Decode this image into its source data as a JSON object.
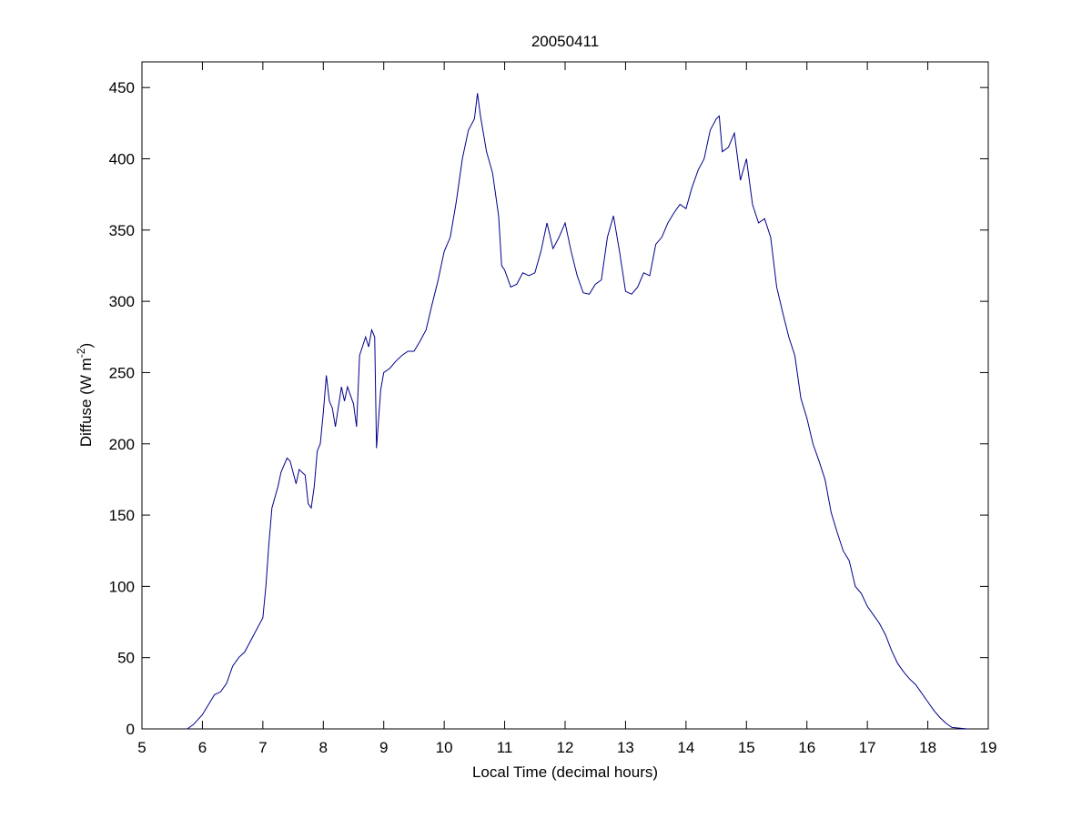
{
  "chart_data": {
    "type": "line",
    "title": "20050411",
    "xlabel": "Local Time (decimal hours)",
    "ylabel": [
      "Diffuse (W m",
      "-2",
      ")"
    ],
    "x": [
      5.75,
      5.85,
      6.0,
      6.1,
      6.2,
      6.3,
      6.4,
      6.5,
      6.6,
      6.7,
      6.8,
      6.9,
      7.0,
      7.05,
      7.1,
      7.15,
      7.25,
      7.3,
      7.4,
      7.45,
      7.55,
      7.6,
      7.7,
      7.75,
      7.8,
      7.85,
      7.9,
      7.95,
      8.0,
      8.05,
      8.1,
      8.15,
      8.2,
      8.3,
      8.35,
      8.4,
      8.5,
      8.55,
      8.6,
      8.7,
      8.75,
      8.8,
      8.85,
      8.88,
      8.95,
      9.0,
      9.1,
      9.2,
      9.3,
      9.4,
      9.5,
      9.6,
      9.7,
      9.8,
      9.9,
      10.0,
      10.1,
      10.2,
      10.3,
      10.4,
      10.5,
      10.55,
      10.6,
      10.7,
      10.8,
      10.9,
      10.95,
      11.0,
      11.1,
      11.2,
      11.3,
      11.4,
      11.5,
      11.6,
      11.7,
      11.8,
      11.9,
      12.0,
      12.1,
      12.2,
      12.3,
      12.4,
      12.5,
      12.6,
      12.7,
      12.8,
      12.9,
      13.0,
      13.1,
      13.2,
      13.3,
      13.4,
      13.5,
      13.6,
      13.7,
      13.8,
      13.9,
      14.0,
      14.1,
      14.2,
      14.3,
      14.4,
      14.5,
      14.55,
      14.6,
      14.7,
      14.8,
      14.9,
      15.0,
      15.1,
      15.2,
      15.3,
      15.4,
      15.5,
      15.6,
      15.7,
      15.8,
      15.9,
      16.0,
      16.1,
      16.2,
      16.3,
      16.4,
      16.5,
      16.6,
      16.7,
      16.8,
      16.9,
      17.0,
      17.1,
      17.2,
      17.3,
      17.4,
      17.5,
      17.6,
      17.7,
      17.8,
      17.9,
      18.0,
      18.1,
      18.2,
      18.3,
      18.4,
      18.65
    ],
    "series": [
      {
        "color": "#00008b",
        "values": [
          0,
          3,
          10,
          17,
          24,
          26,
          32,
          44,
          50,
          54,
          62,
          70,
          78,
          100,
          130,
          155,
          170,
          180,
          190,
          188,
          172,
          182,
          178,
          158,
          155,
          170,
          195,
          200,
          222,
          248,
          230,
          225,
          212,
          240,
          230,
          240,
          228,
          212,
          262,
          275,
          268,
          280,
          275,
          197,
          238,
          250,
          253,
          258,
          262,
          265,
          265,
          272,
          280,
          298,
          315,
          335,
          345,
          370,
          400,
          420,
          428,
          446,
          430,
          405,
          390,
          360,
          325,
          322,
          310,
          312,
          320,
          318,
          320,
          335,
          355,
          337,
          345,
          355,
          335,
          318,
          306,
          305,
          312,
          315,
          345,
          360,
          335,
          307,
          305,
          310,
          320,
          318,
          340,
          345,
          355,
          362,
          368,
          365,
          380,
          392,
          400,
          420,
          428,
          430,
          405,
          408,
          418,
          385,
          400,
          368,
          355,
          358,
          345,
          310,
          292,
          275,
          262,
          232,
          218,
          200,
          188,
          175,
          152,
          138,
          125,
          118,
          100,
          95,
          86,
          80,
          74,
          66,
          55,
          46,
          40,
          35,
          31,
          25,
          19,
          13,
          8,
          4,
          1,
          0
        ]
      }
    ],
    "xlim": [
      5,
      19
    ],
    "xticks": [
      5,
      6,
      7,
      8,
      9,
      10,
      11,
      12,
      13,
      14,
      15,
      16,
      17,
      18,
      19
    ],
    "ylim": [
      0,
      468
    ],
    "yticks": [
      0,
      50,
      100,
      150,
      200,
      250,
      300,
      350,
      400,
      450
    ]
  }
}
